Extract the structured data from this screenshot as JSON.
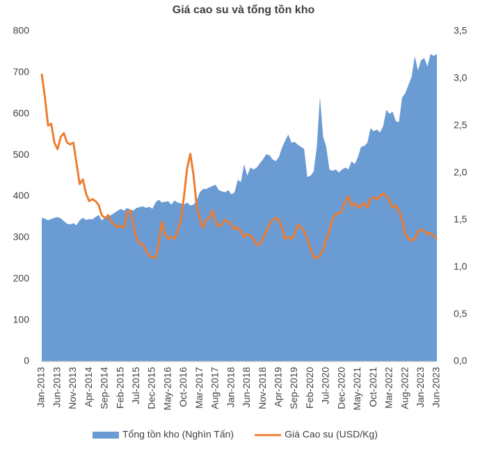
{
  "chart_data": {
    "type": "area_line",
    "title": "Giá cao su và tổng tồn kho",
    "categories": [
      "Jan-2013",
      null,
      null,
      null,
      null,
      "Jun-2013",
      null,
      null,
      null,
      null,
      "Nov-2013",
      null,
      null,
      null,
      null,
      "Apr-2014",
      null,
      null,
      null,
      null,
      "Sep-2014",
      null,
      null,
      null,
      null,
      "Feb-2015",
      null,
      null,
      null,
      null,
      "Jul-2015",
      null,
      null,
      null,
      null,
      "Dec-2015",
      null,
      null,
      null,
      null,
      "May-2016",
      null,
      null,
      null,
      null,
      "Oct-2016",
      null,
      null,
      null,
      null,
      "Mar-2017",
      null,
      null,
      null,
      null,
      "Aug-2017",
      null,
      null,
      null,
      null,
      "Jan-2018",
      null,
      null,
      null,
      null,
      "Jun-2018",
      null,
      null,
      null,
      null,
      "Nov-2018",
      null,
      null,
      null,
      null,
      "Apr-2019",
      null,
      null,
      null,
      null,
      "Sep-2019",
      null,
      null,
      null,
      null,
      "Feb-2020",
      null,
      null,
      null,
      null,
      "Jul-2020",
      null,
      null,
      null,
      null,
      "Dec-2020",
      null,
      null,
      null,
      null,
      "May-2021",
      null,
      null,
      null,
      null,
      "Oct-2021",
      null,
      null,
      null,
      null,
      "Mar-2022",
      null,
      null,
      null,
      null,
      "Aug-2022",
      null,
      null,
      null,
      null,
      "Jan-2023",
      null,
      null,
      null,
      null,
      "Jun-2023"
    ],
    "series": [
      {
        "name": "Tổng tồn kho (Nghìn Tấn)",
        "type": "area",
        "color": "#6a9bd3",
        "axis": "y",
        "values": [
          348,
          346,
          342,
          345,
          348,
          350,
          347,
          340,
          334,
          332,
          335,
          330,
          342,
          348,
          343,
          345,
          344,
          350,
          355,
          342,
          348,
          352,
          355,
          360,
          365,
          370,
          365,
          372,
          368,
          366,
          372,
          374,
          376,
          372,
          375,
          370,
          385,
          392,
          385,
          387,
          388,
          380,
          390,
          385,
          383,
          380,
          385,
          378,
          380,
          390,
          410,
          418,
          418,
          422,
          425,
          428,
          415,
          412,
          410,
          415,
          405,
          410,
          440,
          435,
          478,
          450,
          470,
          465,
          470,
          480,
          490,
          502,
          500,
          490,
          485,
          495,
          518,
          535,
          550,
          530,
          532,
          525,
          520,
          515,
          447,
          450,
          460,
          520,
          640,
          545,
          520,
          465,
          462,
          465,
          458,
          465,
          470,
          465,
          485,
          478,
          495,
          520,
          522,
          530,
          565,
          558,
          562,
          555,
          570,
          610,
          600,
          605,
          582,
          580,
          640,
          650,
          670,
          690,
          740,
          705,
          730,
          735,
          715,
          745,
          740,
          745
        ]
      },
      {
        "name": "Giá Cao su (USD/Kg)",
        "type": "line",
        "color": "#ed7d31",
        "axis": "y2",
        "values": [
          3.05,
          2.8,
          2.5,
          2.52,
          2.32,
          2.25,
          2.38,
          2.42,
          2.32,
          2.3,
          2.32,
          2.1,
          1.88,
          1.93,
          1.78,
          1.7,
          1.72,
          1.7,
          1.66,
          1.55,
          1.52,
          1.55,
          1.48,
          1.45,
          1.42,
          1.44,
          1.42,
          1.58,
          1.6,
          1.45,
          1.3,
          1.25,
          1.24,
          1.18,
          1.12,
          1.1,
          1.1,
          1.25,
          1.48,
          1.35,
          1.3,
          1.32,
          1.3,
          1.38,
          1.5,
          1.75,
          2.05,
          2.2,
          1.98,
          1.65,
          1.5,
          1.42,
          1.5,
          1.52,
          1.6,
          1.48,
          1.43,
          1.45,
          1.5,
          1.48,
          1.45,
          1.4,
          1.42,
          1.38,
          1.32,
          1.35,
          1.33,
          1.3,
          1.23,
          1.25,
          1.3,
          1.38,
          1.45,
          1.5,
          1.52,
          1.5,
          1.42,
          1.3,
          1.32,
          1.3,
          1.35,
          1.45,
          1.42,
          1.38,
          1.3,
          1.2,
          1.1,
          1.1,
          1.12,
          1.18,
          1.3,
          1.38,
          1.52,
          1.56,
          1.57,
          1.6,
          1.7,
          1.75,
          1.65,
          1.68,
          1.63,
          1.65,
          1.68,
          1.63,
          1.72,
          1.74,
          1.72,
          1.75,
          1.78,
          1.75,
          1.7,
          1.63,
          1.65,
          1.6,
          1.5,
          1.35,
          1.3,
          1.28,
          1.3,
          1.38,
          1.4,
          1.38,
          1.35,
          1.36,
          1.33,
          1.3
        ]
      }
    ],
    "ylim": [
      0,
      800
    ],
    "yticks": [
      0,
      100,
      200,
      300,
      400,
      500,
      600,
      700,
      800
    ],
    "y2lim": [
      0,
      3.5
    ],
    "y2ticks": [
      {
        "value": 0,
        "label": "0,0"
      },
      {
        "value": 0.5,
        "label": "0,5"
      },
      {
        "value": 1,
        "label": "1,0"
      },
      {
        "value": 1.5,
        "label": "1,5"
      },
      {
        "value": 2,
        "label": "2,0"
      },
      {
        "value": 2.5,
        "label": "2,5"
      },
      {
        "value": 3,
        "label": "3,0"
      },
      {
        "value": 3.5,
        "label": "3,5"
      }
    ],
    "grid": false,
    "legend": "bottom"
  }
}
